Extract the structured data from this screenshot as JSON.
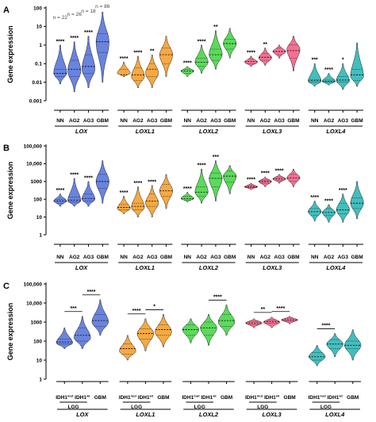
{
  "chart_data": [
    {
      "panel": "A",
      "type": "violin",
      "ylabel": "Gene expression",
      "yscale": "log",
      "ylim": [
        0.001,
        100
      ],
      "ytick_labels": [
        "100",
        "10",
        "1",
        "0.1",
        "0.01",
        "0.001"
      ],
      "n_labels": [
        "n = 22",
        "n = 26",
        "n = 18",
        "n = 86"
      ],
      "categories": [
        "NN",
        "AG2",
        "AG3",
        "GBM"
      ],
      "groups": [
        {
          "gene": "LOX",
          "color": "#4f6fd9",
          "significance": [
            "****",
            "****",
            "****",
            ""
          ],
          "min": [
            0.008,
            0.003,
            0.005,
            0.01
          ],
          "q1": [
            0.02,
            0.02,
            0.03,
            0.4
          ],
          "median": [
            0.03,
            0.05,
            0.07,
            1.5
          ],
          "q3": [
            0.05,
            0.15,
            0.3,
            4
          ],
          "max": [
            1,
            1.5,
            3,
            60
          ],
          "mode": [
            0.03,
            0.04,
            0.05,
            1.5
          ]
        },
        {
          "gene": "LOXL1",
          "color": "#f59a22",
          "significance": [
            "****",
            "****",
            "**",
            ""
          ],
          "min": [
            0.02,
            0.005,
            0.005,
            0.02
          ],
          "q1": [
            0.02,
            0.012,
            0.02,
            0.1
          ],
          "median": [
            0.025,
            0.025,
            0.05,
            0.3
          ],
          "q3": [
            0.05,
            0.06,
            0.1,
            0.7
          ],
          "max": [
            0.12,
            0.25,
            0.3,
            3
          ],
          "mode": [
            0.03,
            0.02,
            0.03,
            0.3
          ]
        },
        {
          "gene": "LOXL2",
          "color": "#3ed43e",
          "significance": [
            "****",
            "****",
            "**",
            ""
          ],
          "min": [
            0.02,
            0.03,
            0.05,
            0.2
          ],
          "q1": [
            0.03,
            0.07,
            0.15,
            0.6
          ],
          "median": [
            0.04,
            0.12,
            0.3,
            1.2
          ],
          "q3": [
            0.05,
            0.2,
            0.6,
            2
          ],
          "max": [
            0.07,
            1,
            6,
            8
          ],
          "mode": [
            0.04,
            0.12,
            0.3,
            1.2
          ]
        },
        {
          "gene": "LOXL3",
          "color": "#f0587f",
          "significance": [
            "****",
            "**",
            "",
            ""
          ],
          "min": [
            0.07,
            0.08,
            0.2,
            0.04
          ],
          "q1": [
            0.1,
            0.15,
            0.3,
            0.2
          ],
          "median": [
            0.13,
            0.22,
            0.45,
            0.5
          ],
          "q3": [
            0.18,
            0.35,
            0.7,
            1
          ],
          "max": [
            0.25,
            0.7,
            1,
            3
          ],
          "mode": [
            0.12,
            0.2,
            0.45,
            0.6
          ]
        },
        {
          "gene": "LOXL4",
          "color": "#22b3b3",
          "significance": [
            "***",
            "****",
            "*",
            ""
          ],
          "min": [
            0.006,
            0.007,
            0.004,
            0.006
          ],
          "q1": [
            0.01,
            0.01,
            0.01,
            0.012
          ],
          "median": [
            0.012,
            0.011,
            0.013,
            0.025
          ],
          "q3": [
            0.014,
            0.013,
            0.02,
            0.05
          ],
          "max": [
            0.1,
            0.03,
            0.1,
            1.3
          ],
          "mode": [
            0.011,
            0.011,
            0.012,
            0.02
          ]
        }
      ]
    },
    {
      "panel": "B",
      "type": "violin",
      "ylabel": "Gene expression",
      "yscale": "log",
      "ylim": [
        1,
        100000
      ],
      "ytick_labels": [
        "100,000",
        "10,000",
        "1000",
        "100",
        "10",
        "1"
      ],
      "categories": [
        "NN",
        "AG2",
        "AG3",
        "GBM"
      ],
      "groups": [
        {
          "gene": "LOX",
          "color": "#4f6fd9",
          "significance": [
            "****",
            "****",
            "****",
            ""
          ],
          "min": [
            40,
            40,
            40,
            60
          ],
          "q1": [
            60,
            70,
            80,
            400
          ],
          "median": [
            80,
            90,
            110,
            1000
          ],
          "q3": [
            100,
            130,
            200,
            2500
          ],
          "max": [
            200,
            1500,
            1000,
            15000
          ],
          "mode": [
            80,
            80,
            100,
            1000
          ]
        },
        {
          "gene": "LOXL1",
          "color": "#f59a22",
          "significance": [
            "****",
            "****",
            "****",
            ""
          ],
          "min": [
            15,
            10,
            10,
            30
          ],
          "q1": [
            25,
            25,
            40,
            150
          ],
          "median": [
            35,
            40,
            80,
            300
          ],
          "q3": [
            50,
            60,
            200,
            700
          ],
          "max": [
            150,
            500,
            600,
            2500
          ],
          "mode": [
            30,
            35,
            60,
            300
          ]
        },
        {
          "gene": "LOXL2",
          "color": "#3ed43e",
          "significance": [
            "****",
            "****",
            "***",
            ""
          ],
          "min": [
            70,
            60,
            80,
            200
          ],
          "q1": [
            90,
            150,
            500,
            900
          ],
          "median": [
            110,
            250,
            1500,
            2000
          ],
          "q3": [
            150,
            500,
            3000,
            4000
          ],
          "max": [
            250,
            5000,
            15000,
            8000
          ],
          "mode": [
            110,
            250,
            1500,
            2000
          ]
        },
        {
          "gene": "LOXL3",
          "color": "#f0587f",
          "significance": [
            "****",
            "****",
            "****",
            ""
          ],
          "min": [
            350,
            500,
            800,
            500
          ],
          "q1": [
            450,
            800,
            1100,
            1000
          ],
          "median": [
            500,
            1000,
            1400,
            1600
          ],
          "q3": [
            600,
            1200,
            1800,
            2500
          ],
          "max": [
            800,
            1800,
            2500,
            5000
          ],
          "mode": [
            500,
            1000,
            1400,
            1600
          ]
        },
        {
          "gene": "LOXL4",
          "color": "#22b3b3",
          "significance": [
            "****",
            "****",
            "****",
            ""
          ],
          "min": [
            6,
            5,
            5,
            8
          ],
          "q1": [
            12,
            12,
            15,
            30
          ],
          "median": [
            20,
            18,
            25,
            60
          ],
          "q3": [
            30,
            30,
            60,
            120
          ],
          "max": [
            80,
            50,
            200,
            1000
          ],
          "mode": [
            20,
            18,
            25,
            60
          ]
        }
      ]
    },
    {
      "panel": "C",
      "type": "violin",
      "ylabel": "Gene expression",
      "yscale": "log",
      "ylim": [
        1,
        100000
      ],
      "ytick_labels": [
        "100,000",
        "10,000",
        "1000",
        "100",
        "10",
        "1"
      ],
      "categories": [
        "IDH1mut",
        "IDH1wt",
        "GBM"
      ],
      "category_parts": [
        [
          "IDH1",
          "mut"
        ],
        [
          "IDH1",
          "wt"
        ],
        [
          "GBM",
          ""
        ]
      ],
      "subgroup_label": "LGG",
      "groups": [
        {
          "gene": "LOX",
          "color": "#4f6fd9",
          "brackets": [
            {
              "from": 0,
              "to": 1,
              "label": "***"
            },
            {
              "from": 1,
              "to": 2,
              "label": "****"
            }
          ],
          "min": [
            40,
            40,
            200
          ],
          "q1": [
            70,
            100,
            600
          ],
          "median": [
            90,
            200,
            1200
          ],
          "q3": [
            130,
            500,
            2500
          ],
          "max": [
            500,
            2000,
            15000
          ],
          "mode": [
            80,
            150,
            1000
          ]
        },
        {
          "gene": "LOXL1",
          "color": "#f59a22",
          "brackets": [
            {
              "from": 0,
              "to": 1,
              "label": "****"
            },
            {
              "from": 1,
              "to": 2,
              "label": "*"
            }
          ],
          "min": [
            10,
            30,
            50
          ],
          "q1": [
            20,
            130,
            200
          ],
          "median": [
            40,
            250,
            400
          ],
          "q3": [
            70,
            450,
            700
          ],
          "max": [
            200,
            1500,
            2500
          ],
          "mode": [
            30,
            250,
            300
          ]
        },
        {
          "gene": "LOXL2",
          "color": "#3ed43e",
          "brackets": [
            {
              "from": 1,
              "to": 2,
              "label": "****"
            }
          ],
          "min": [
            80,
            60,
            200
          ],
          "q1": [
            200,
            200,
            600
          ],
          "median": [
            400,
            500,
            1200
          ],
          "q3": [
            700,
            1000,
            2500
          ],
          "max": [
            1500,
            2500,
            8000
          ],
          "mode": [
            400,
            500,
            1000
          ]
        },
        {
          "gene": "LOXL3",
          "color": "#f0587f",
          "brackets": [
            {
              "from": 0,
              "to": 1,
              "label": "**"
            },
            {
              "from": 1,
              "to": 2,
              "label": "****"
            }
          ],
          "min": [
            500,
            500,
            800
          ],
          "q1": [
            750,
            850,
            1100
          ],
          "median": [
            900,
            1050,
            1300
          ],
          "q3": [
            1100,
            1250,
            1600
          ],
          "max": [
            1500,
            1800,
            2000
          ],
          "mode": [
            900,
            1000,
            1300
          ]
        },
        {
          "gene": "LOXL4",
          "color": "#22b3b3",
          "brackets": [
            {
              "from": 0,
              "to": 1,
              "label": "****"
            }
          ],
          "min": [
            5,
            15,
            10
          ],
          "q1": [
            10,
            40,
            40
          ],
          "median": [
            15,
            70,
            60
          ],
          "q3": [
            25,
            120,
            100
          ],
          "max": [
            60,
            250,
            400
          ],
          "mode": [
            15,
            70,
            60
          ]
        }
      ]
    }
  ]
}
